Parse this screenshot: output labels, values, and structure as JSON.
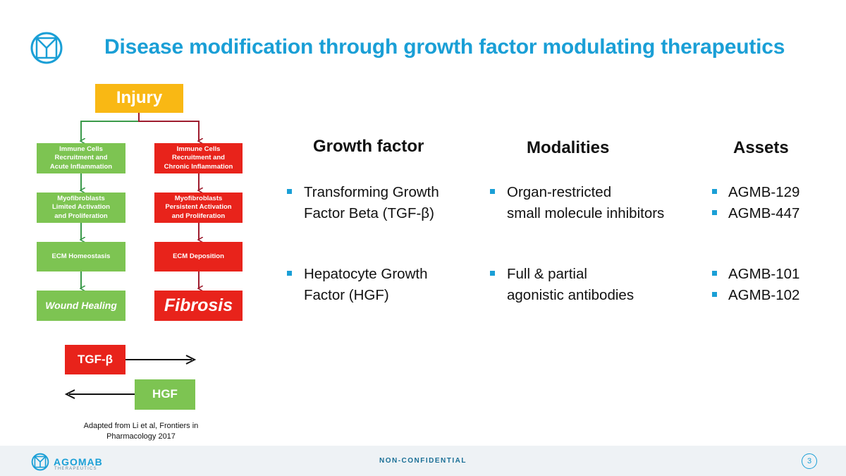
{
  "title": "Disease modification through growth factor modulating therapeutics",
  "flow": {
    "injury": "Injury",
    "left": [
      "Immune Cells\nRecruitment and\nAcute Inflammation",
      "Myofibroblasts\nLimited Activation\nand Proliferation",
      "ECM Homeostasis",
      "Wound Healing"
    ],
    "right": [
      "Immune Cells\nRecruitment and\nChronic Inflammation",
      "Myofibroblasts\nPersistent Activation\nand Proliferation",
      "ECM Deposition",
      "Fibrosis"
    ],
    "tgf": "TGF-β",
    "hgf": "HGF"
  },
  "caption": "Adapted from Li et al, Frontiers in\nPharmacology 2017",
  "columns": {
    "growth_factor": "Growth factor",
    "modalities": "Modalities",
    "assets": "Assets"
  },
  "rows": [
    {
      "growth_factor": "Transforming Growth\nFactor Beta (TGF-β)",
      "modality": "Organ-restricted\nsmall molecule inhibitors",
      "assets": [
        "AGMB-129",
        "AGMB-447"
      ]
    },
    {
      "growth_factor": "Hepatocyte Growth\nFactor (HGF)",
      "modality": "Full & partial\nagonistic antibodies",
      "assets": [
        "AGMB-101",
        "AGMB-102"
      ]
    }
  ],
  "footer": {
    "brand": "AGOMAB",
    "brand_sub": "THERAPEUTICS",
    "confidentiality": "NON-CONFIDENTIAL",
    "page_number": "3"
  },
  "colors": {
    "accent": "#1a9fd6",
    "green": "#7dc452",
    "red": "#e8231b",
    "yellow": "#f9b814",
    "dark_red_arrow": "#9e1c2e",
    "green_arrow": "#3a9a4a"
  },
  "icons": [
    "agomab-logo-icon",
    "right-arrow-icon",
    "left-arrow-icon",
    "square-bullet-icon"
  ]
}
